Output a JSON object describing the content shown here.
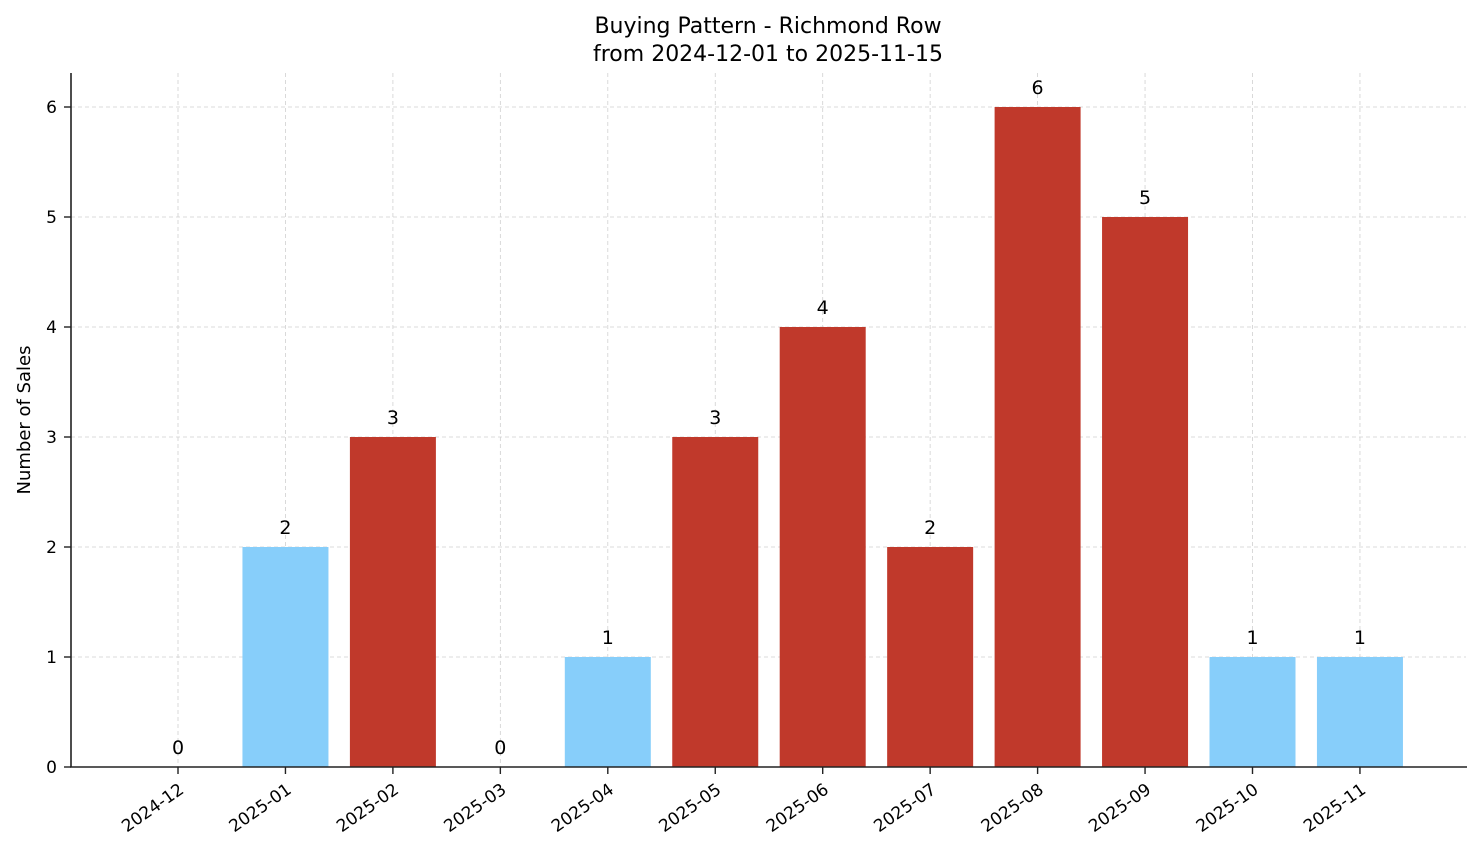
{
  "chart_data": {
    "type": "bar",
    "title": "Buying Pattern - Richmond Row",
    "subtitle": "from 2024-12-01 to 2025-11-15",
    "xlabel": "",
    "ylabel": "Number of Sales",
    "ylim": [
      0,
      6.3
    ],
    "yticks": [
      0,
      1,
      2,
      3,
      4,
      5,
      6
    ],
    "grid": true,
    "legend": null,
    "categories": [
      "2024-12",
      "2025-01",
      "2025-02",
      "2025-03",
      "2025-04",
      "2025-05",
      "2025-06",
      "2025-07",
      "2025-08",
      "2025-09",
      "2025-10",
      "2025-11"
    ],
    "values": [
      0,
      2,
      3,
      0,
      1,
      3,
      4,
      2,
      6,
      5,
      1,
      1
    ],
    "bar_colors": [
      "#87cefa",
      "#87cefa",
      "#c0392b",
      "#87cefa",
      "#87cefa",
      "#c0392b",
      "#c0392b",
      "#c0392b",
      "#c0392b",
      "#c0392b",
      "#87cefa",
      "#87cefa"
    ],
    "colors": {
      "high": "#c0392b",
      "low": "#87cefa"
    }
  }
}
